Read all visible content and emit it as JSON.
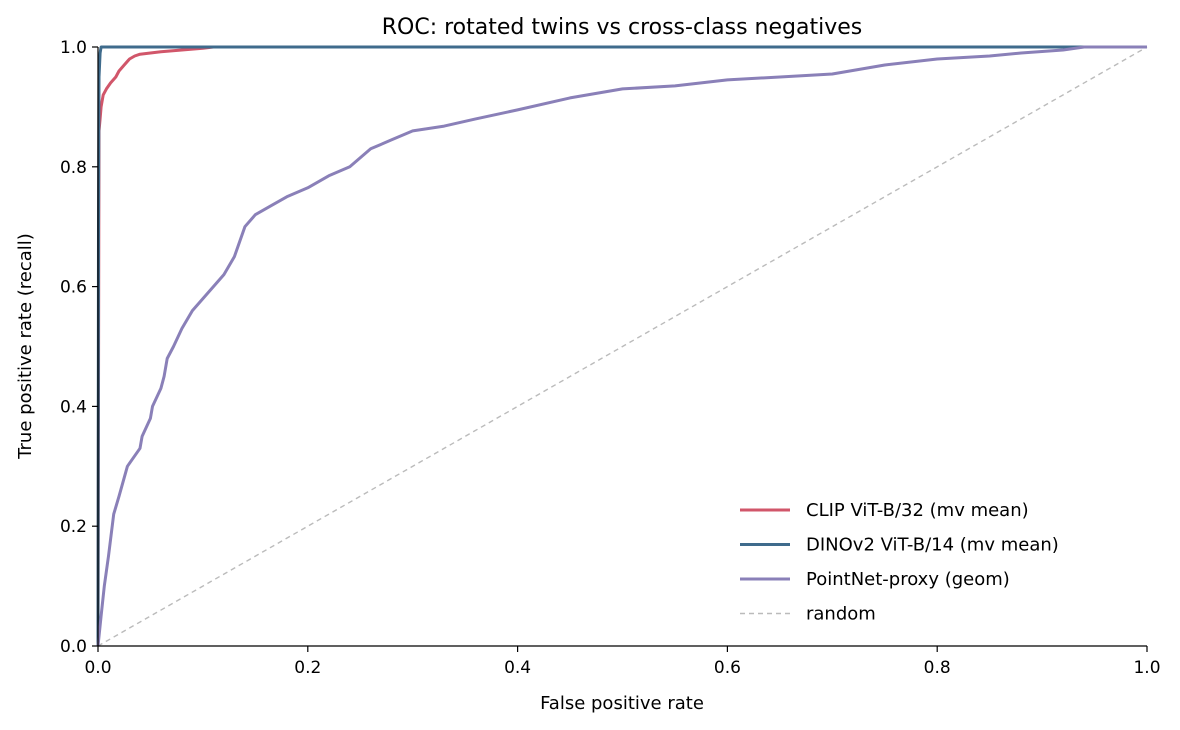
{
  "chart_data": {
    "type": "line",
    "title": "ROC: rotated twins vs cross-class negatives",
    "xlabel": "False positive rate",
    "ylabel": "True positive rate (recall)",
    "xlim": [
      0,
      1
    ],
    "ylim": [
      0,
      1
    ],
    "xticks": [
      "0.0",
      "0.2",
      "0.4",
      "0.6",
      "0.8",
      "1.0"
    ],
    "yticks": [
      "0.0",
      "0.2",
      "0.4",
      "0.6",
      "0.8",
      "1.0"
    ],
    "grid": false,
    "legend_position": "lower-right",
    "series": [
      {
        "name": "CLIP ViT-B/32 (mv mean)",
        "color": "#d1566a",
        "dashed": false,
        "x": [
          0,
          0.001,
          0.002,
          0.003,
          0.005,
          0.008,
          0.012,
          0.017,
          0.02,
          0.025,
          0.03,
          0.035,
          0.04,
          0.05,
          0.06,
          0.08,
          0.1,
          0.11,
          0.13,
          1.0
        ],
        "y": [
          0,
          0.86,
          0.88,
          0.9,
          0.92,
          0.93,
          0.94,
          0.95,
          0.96,
          0.97,
          0.98,
          0.985,
          0.988,
          0.99,
          0.992,
          0.995,
          0.998,
          1.0,
          1.0,
          1.0
        ]
      },
      {
        "name": "DINOv2 ViT-B/14 (mv mean)",
        "color": "#3f6b8c",
        "dashed": false,
        "x": [
          0,
          0.0005,
          0.001,
          0.002,
          0.003,
          1.0
        ],
        "y": [
          0,
          0.7,
          0.95,
          0.99,
          1.0,
          1.0
        ]
      },
      {
        "name": "PointNet-proxy (geom)",
        "color": "#8a80b8",
        "dashed": false,
        "x": [
          0,
          0.003,
          0.006,
          0.01,
          0.015,
          0.02,
          0.028,
          0.04,
          0.042,
          0.05,
          0.052,
          0.06,
          0.063,
          0.066,
          0.072,
          0.08,
          0.09,
          0.1,
          0.12,
          0.13,
          0.14,
          0.15,
          0.165,
          0.18,
          0.2,
          0.22,
          0.24,
          0.26,
          0.28,
          0.3,
          0.33,
          0.36,
          0.4,
          0.45,
          0.5,
          0.55,
          0.6,
          0.65,
          0.7,
          0.75,
          0.8,
          0.85,
          0.88,
          0.92,
          0.94,
          1.0
        ],
        "y": [
          0,
          0.05,
          0.1,
          0.15,
          0.22,
          0.25,
          0.3,
          0.33,
          0.35,
          0.38,
          0.4,
          0.43,
          0.45,
          0.48,
          0.5,
          0.53,
          0.56,
          0.58,
          0.62,
          0.65,
          0.7,
          0.72,
          0.735,
          0.75,
          0.765,
          0.785,
          0.8,
          0.83,
          0.845,
          0.86,
          0.868,
          0.88,
          0.895,
          0.915,
          0.93,
          0.935,
          0.945,
          0.95,
          0.955,
          0.97,
          0.98,
          0.985,
          0.99,
          0.995,
          1.0,
          1.0
        ]
      },
      {
        "name": "random",
        "color": "#bbbbbb",
        "dashed": true,
        "x": [
          0,
          1
        ],
        "y": [
          0,
          1
        ]
      }
    ]
  }
}
